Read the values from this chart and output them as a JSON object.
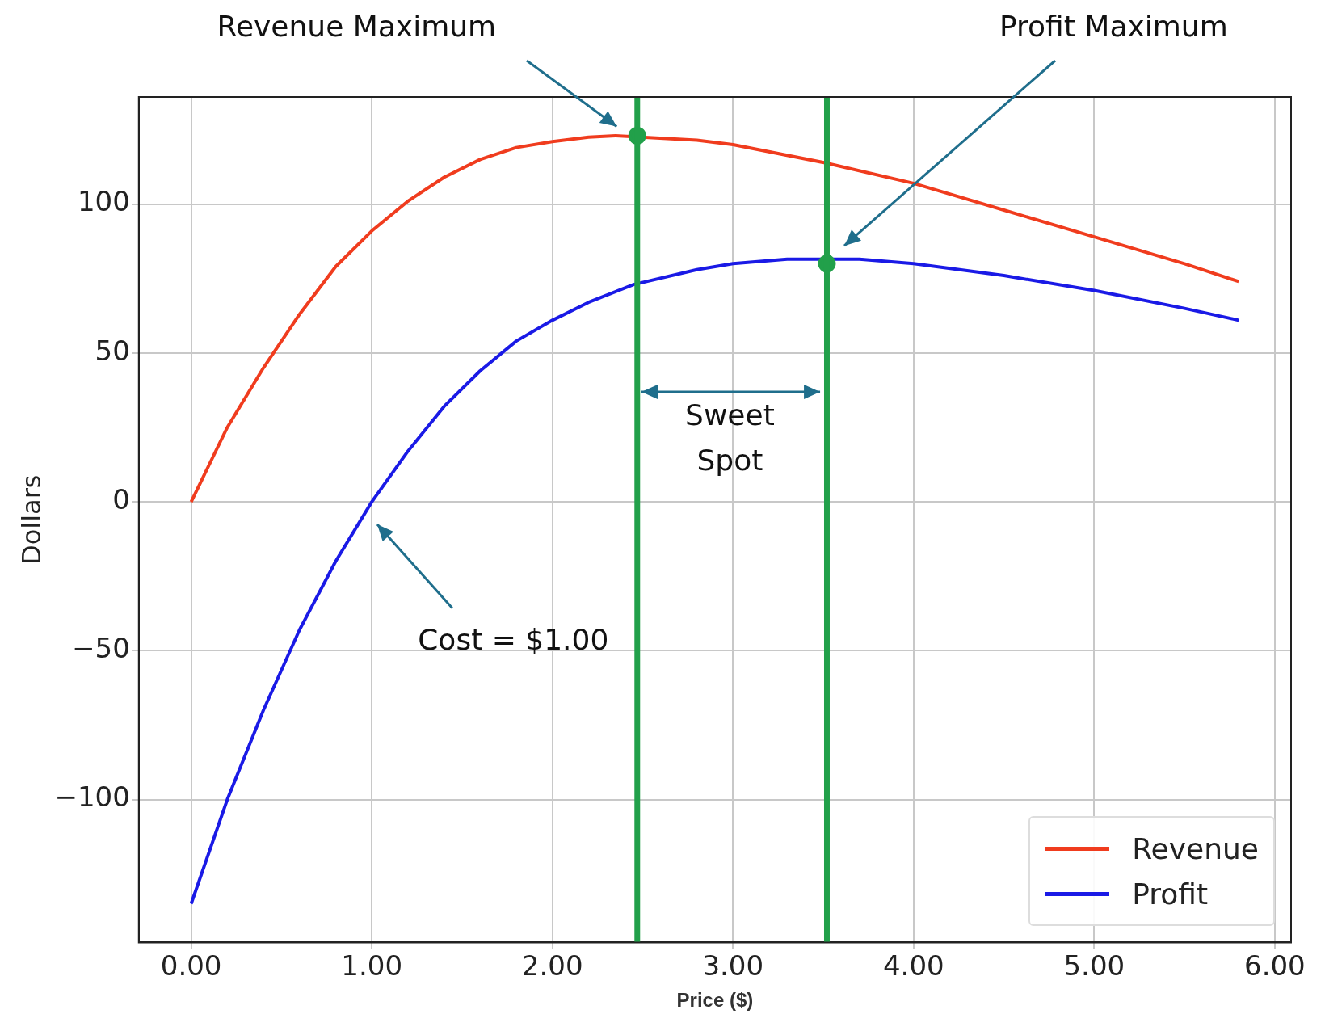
{
  "chart_data": {
    "type": "line",
    "xlabel": "Price ($)",
    "ylabel": "Dollars",
    "xlim": [
      -0.29,
      6.09
    ],
    "ylim": [
      -148,
      136
    ],
    "xticks": [
      {
        "value": 0,
        "label": "0.00"
      },
      {
        "value": 1,
        "label": "1.00"
      },
      {
        "value": 2,
        "label": "2.00"
      },
      {
        "value": 3,
        "label": "3.00"
      },
      {
        "value": 4,
        "label": "4.00"
      },
      {
        "value": 5,
        "label": "5.00"
      },
      {
        "value": 6,
        "label": "6.00"
      }
    ],
    "yticks": [
      {
        "value": -100,
        "label": "−100"
      },
      {
        "value": -50,
        "label": "−50"
      },
      0,
      50,
      100
    ],
    "grid": true,
    "legend": "bottom right",
    "series": [
      {
        "name": "Revenue",
        "color": "#f03c1e",
        "x": [
          0,
          0.2,
          0.4,
          0.6,
          0.8,
          1.0,
          1.2,
          1.4,
          1.6,
          1.8,
          2.0,
          2.2,
          2.35,
          2.8,
          3.0,
          3.5,
          4.0,
          4.5,
          5.0,
          5.5,
          5.8
        ],
        "values": [
          0,
          25,
          45,
          63,
          79,
          91,
          101,
          109,
          115,
          119,
          121,
          122.5,
          123,
          121.5,
          120,
          114,
          107,
          98,
          89,
          80,
          74
        ]
      },
      {
        "name": "Profit",
        "color": "#1a1ae6",
        "x": [
          0,
          0.2,
          0.4,
          0.6,
          0.8,
          1.0,
          1.2,
          1.4,
          1.6,
          1.8,
          2.0,
          2.2,
          2.45,
          2.8,
          3.0,
          3.3,
          3.7,
          4.0,
          4.5,
          5.0,
          5.5,
          5.8
        ],
        "values": [
          -135,
          -100,
          -70,
          -43,
          -20,
          0,
          17,
          32,
          44,
          54,
          61,
          67,
          73,
          78,
          80,
          81.5,
          81.5,
          80,
          76,
          71,
          65,
          61
        ]
      },
      {
        "color": "#22a04a",
        "type": "scatter",
        "marker": "circle",
        "x": [
          2.47,
          3.52
        ],
        "values": [
          123,
          80
        ]
      }
    ],
    "ref_lines": [
      {
        "axis": "x",
        "value": 2.47,
        "color": "#22a04a"
      },
      {
        "axis": "x",
        "value": 3.52,
        "color": "#22a04a"
      }
    ],
    "annotations": [
      "Revenue Maximum",
      "Profit Maximum",
      "Cost = $1.00",
      "Sweet Spot"
    ]
  }
}
